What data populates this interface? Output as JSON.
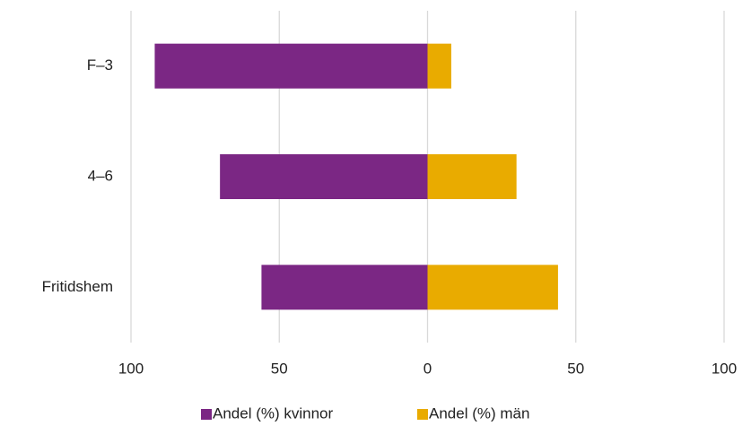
{
  "chart_data": {
    "type": "diverging-bar",
    "categories": [
      "F–3",
      "4–6",
      "Fritidshem"
    ],
    "series": [
      {
        "name": "Andel (%) kvinnor",
        "color": "#7b2784",
        "values": [
          -92,
          -70,
          -56
        ]
      },
      {
        "name": "Andel (%) män",
        "color": "#e9ab00",
        "values": [
          8,
          30,
          44
        ]
      }
    ],
    "xlim": [
      -100,
      100
    ],
    "xticks": [
      {
        "value": -100,
        "label": "100"
      },
      {
        "value": -50,
        "label": "50"
      },
      0,
      50,
      100
    ],
    "grid": true,
    "legend": "bottom"
  }
}
